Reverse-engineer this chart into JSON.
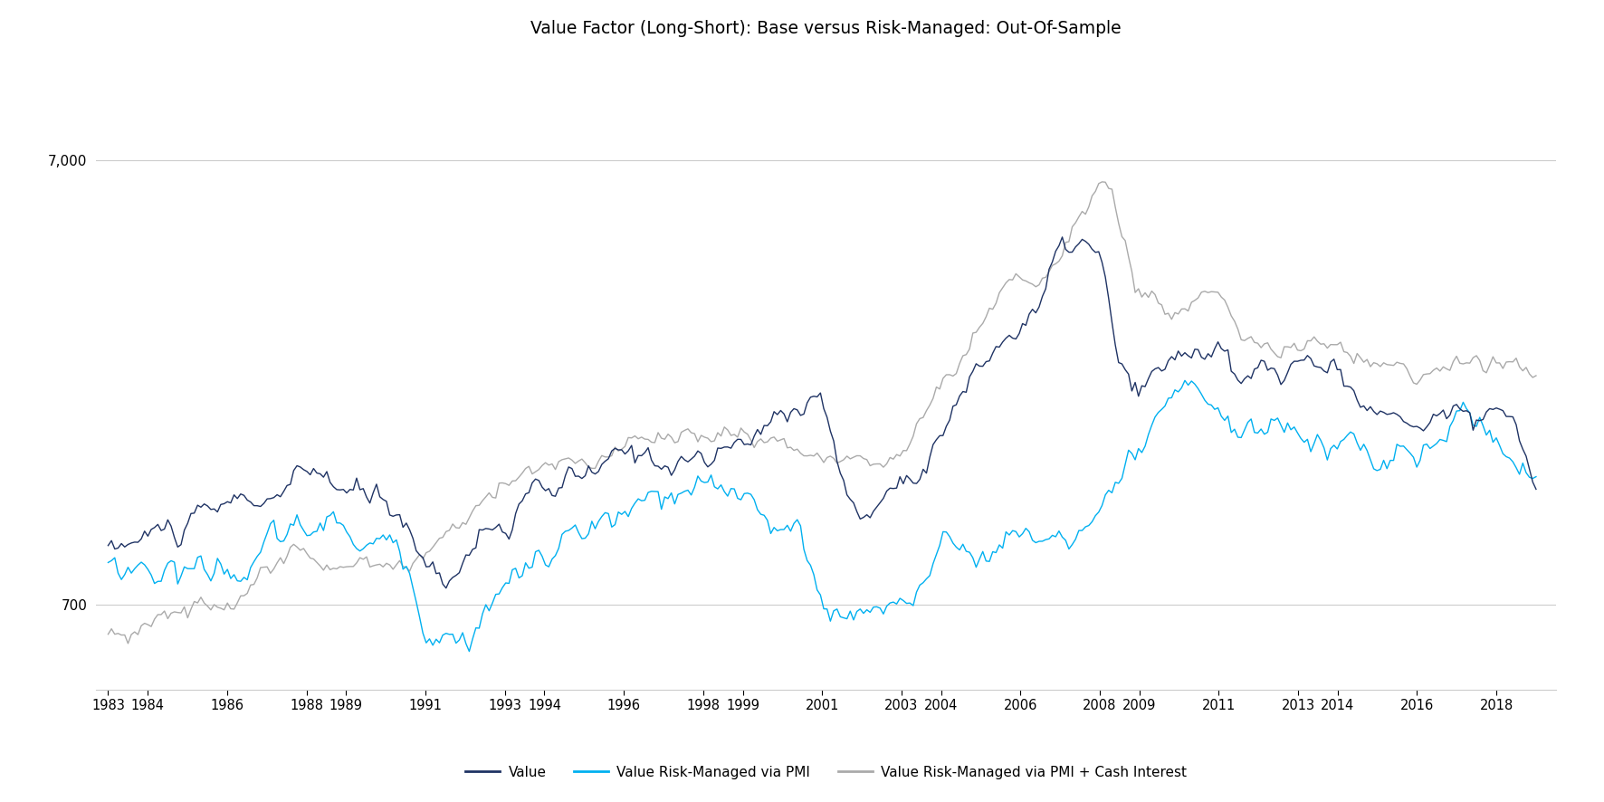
{
  "title": "Value Factor (Long-Short): Base versus Risk-Managed: Out-Of-Sample",
  "title_fontsize": 13.5,
  "background_color": "#ffffff",
  "line_colors": {
    "value": "#1f3364",
    "pmi": "#00b0f0",
    "pmi_cash": "#aaaaaa"
  },
  "line_widths": {
    "value": 1.0,
    "pmi": 1.0,
    "pmi_cash": 1.0
  },
  "legend_labels": [
    "Value",
    "Value Risk-Managed via PMI",
    "Value Risk-Managed via PMI + Cash Interest"
  ],
  "yticks": [
    700,
    7000
  ],
  "ytick_labels": [
    "700",
    "7,000"
  ],
  "ylim_low": 450,
  "ylim_high": 12000,
  "xtick_positions": [
    1983,
    1984,
    1986,
    1988,
    1989,
    1991,
    1993,
    1994,
    1996,
    1998,
    1999,
    2001,
    2003,
    2004,
    2006,
    2008,
    2009,
    2011,
    2013,
    2014,
    2016,
    2018
  ],
  "xtick_labels": [
    "1983",
    "1984",
    "1986",
    "1988",
    "1989",
    "1991",
    "1993",
    "1994",
    "1996",
    "1998",
    "1999",
    "2001",
    "2003",
    "2004",
    "2006",
    "2008",
    "2009",
    "2011",
    "2013",
    "2014",
    "2016",
    "2018"
  ],
  "xlim_left": 1982.7,
  "xlim_right": 2019.5
}
